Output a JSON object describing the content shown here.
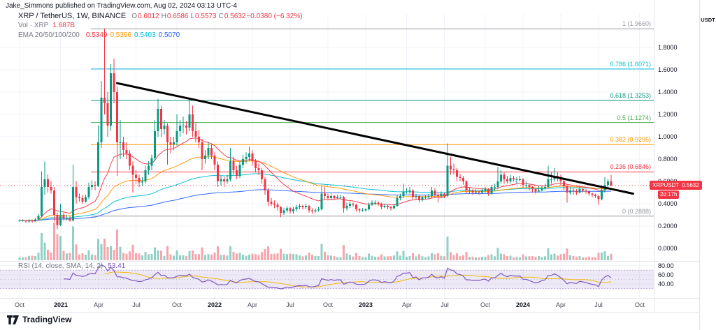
{
  "attribution": "Jake_Simmons published on TradingView.com, Aug 02, 2024 03:13 UTC-4",
  "header_legend": {
    "symbol_title": "XRP / TetherUS, 1W, BINANCE",
    "ohlc": [
      {
        "label": "O",
        "value": "0.6012"
      },
      {
        "label": "H",
        "value": "0.6586"
      },
      {
        "label": "L",
        "value": "0.5573"
      },
      {
        "label": "C",
        "value": "0.5632"
      }
    ],
    "change": "−0.0380 (−6.32%)",
    "value_color": "#f23645",
    "volume_label": "Vol · XRP",
    "volume_value": "1.687B",
    "volume_value_color": "#f23645",
    "ema_label": "EMA 20/50/100/200",
    "ema_values": [
      {
        "value": "0.5349",
        "color": "#f23645"
      },
      {
        "value": "0.5396",
        "color": "#ff9800"
      },
      {
        "value": "0.5403",
        "color": "#00bcd4"
      },
      {
        "value": "0.5070",
        "color": "#2962ff"
      }
    ]
  },
  "rsi_legend": {
    "label": "RSI (14, close, SMA, 14, 2)",
    "value": "53.41",
    "color": "#7e57c2"
  },
  "price_axis": {
    "currency_button": "USDT",
    "ticks": [
      {
        "label": "1.8000",
        "value": 1.8
      },
      {
        "label": "1.6000",
        "value": 1.6
      },
      {
        "label": "1.4000",
        "value": 1.4
      },
      {
        "label": "1.2000",
        "value": 1.2
      },
      {
        "label": "1.0000",
        "value": 1.0
      },
      {
        "label": "0.8000",
        "value": 0.8
      },
      {
        "label": "0.6000",
        "value": 0.6
      },
      {
        "label": "0.4000",
        "value": 0.4
      },
      {
        "label": "0.2000",
        "value": 0.2
      },
      {
        "label": "0.0000",
        "value": 0.0
      }
    ],
    "last_price_badge": {
      "symbol": "XRPUSDT",
      "price": "0.5632",
      "countdown": "2d 17h",
      "bg": "#f23645"
    }
  },
  "rsi_axis_ticks": [
    {
      "label": "80.00",
      "value": 80
    },
    {
      "label": "60.00",
      "value": 60
    },
    {
      "label": "40.00",
      "value": 40
    }
  ],
  "footer": {
    "brand": "TradingView"
  },
  "chart_data": {
    "type": "candlestick",
    "title": "XRP / TetherUS weekly candles with EMA 20/50/100/200, Fibonacci retracement 0.2888–1.9660, descending black trendline, volume and RSI(14) panel",
    "symbol": "XRPUSDT",
    "exchange": "BINANCE",
    "timeframe": "1W",
    "price_range_shown": [
      0.0,
      2.1
    ],
    "grid": true,
    "x_ticks": [
      {
        "label": "Oct",
        "index": 0
      },
      {
        "label": "2021",
        "index": 13
      },
      {
        "label": "Apr",
        "index": 25
      },
      {
        "label": "Jul",
        "index": 37
      },
      {
        "label": "Oct",
        "index": 50
      },
      {
        "label": "2022",
        "index": 62
      },
      {
        "label": "Apr",
        "index": 74
      },
      {
        "label": "Jul",
        "index": 86
      },
      {
        "label": "Oct",
        "index": 98
      },
      {
        "label": "2023",
        "index": 110
      },
      {
        "label": "Apr",
        "index": 123
      },
      {
        "label": "Jul",
        "index": 135
      },
      {
        "label": "Oct",
        "index": 148
      },
      {
        "label": "2024",
        "index": 160
      },
      {
        "label": "Apr",
        "index": 172
      },
      {
        "label": "Jul",
        "index": 184
      },
      {
        "label": "Oct",
        "index": 197
      }
    ],
    "colors": {
      "up": "#089981",
      "down": "#f23645",
      "vol_up": "rgba(8,153,129,0.45)",
      "vol_down": "rgba(242,54,69,0.45)"
    },
    "candles": [
      [
        0.25,
        0.26,
        0.24,
        0.25
      ],
      [
        0.25,
        0.26,
        0.24,
        0.25
      ],
      [
        0.25,
        0.25,
        0.23,
        0.24
      ],
      [
        0.24,
        0.26,
        0.23,
        0.25
      ],
      [
        0.25,
        0.26,
        0.23,
        0.24
      ],
      [
        0.24,
        0.27,
        0.24,
        0.26
      ],
      [
        0.26,
        0.31,
        0.25,
        0.29
      ],
      [
        0.29,
        0.69,
        0.28,
        0.55
      ],
      [
        0.55,
        0.78,
        0.48,
        0.62
      ],
      [
        0.62,
        0.66,
        0.5,
        0.55
      ],
      [
        0.55,
        0.6,
        0.49,
        0.52
      ],
      [
        0.52,
        0.55,
        0.24,
        0.3
      ],
      [
        0.3,
        0.32,
        0.17,
        0.21
      ],
      [
        0.21,
        0.4,
        0.2,
        0.3
      ],
      [
        0.3,
        0.32,
        0.25,
        0.27
      ],
      [
        0.27,
        0.3,
        0.25,
        0.27
      ],
      [
        0.27,
        0.29,
        0.24,
        0.25
      ],
      [
        0.25,
        0.75,
        0.24,
        0.55
      ],
      [
        0.55,
        0.6,
        0.4,
        0.46
      ],
      [
        0.46,
        0.49,
        0.42,
        0.45
      ],
      [
        0.45,
        0.48,
        0.4,
        0.42
      ],
      [
        0.42,
        0.48,
        0.41,
        0.46
      ],
      [
        0.46,
        0.59,
        0.44,
        0.55
      ],
      [
        0.55,
        0.61,
        0.52,
        0.57
      ],
      [
        0.57,
        0.6,
        0.52,
        0.56
      ],
      [
        0.56,
        1.1,
        0.55,
        0.95
      ],
      [
        0.95,
        1.5,
        0.9,
        1.35
      ],
      [
        1.35,
        1.97,
        1.2,
        1.3
      ],
      [
        1.3,
        1.4,
        1.0,
        1.1
      ],
      [
        1.1,
        1.65,
        1.05,
        1.57
      ],
      [
        1.57,
        1.7,
        1.3,
        1.4
      ],
      [
        1.4,
        1.45,
        0.65,
        0.95
      ],
      [
        0.95,
        1.15,
        0.8,
        0.95
      ],
      [
        0.95,
        1.0,
        0.82,
        0.88
      ],
      [
        0.88,
        0.95,
        0.8,
        0.85
      ],
      [
        0.85,
        0.88,
        0.7,
        0.74
      ],
      [
        0.74,
        0.78,
        0.5,
        0.66
      ],
      [
        0.66,
        0.7,
        0.58,
        0.63
      ],
      [
        0.63,
        0.66,
        0.55,
        0.59
      ],
      [
        0.59,
        0.64,
        0.56,
        0.6
      ],
      [
        0.6,
        0.74,
        0.58,
        0.7
      ],
      [
        0.7,
        0.78,
        0.66,
        0.74
      ],
      [
        0.74,
        0.84,
        0.7,
        0.81
      ],
      [
        0.81,
        1.15,
        0.78,
        1.05
      ],
      [
        1.05,
        1.34,
        1.0,
        1.25
      ],
      [
        1.25,
        1.28,
        1.0,
        1.07
      ],
      [
        1.07,
        1.15,
        1.02,
        1.1
      ],
      [
        1.1,
        1.12,
        0.75,
        0.95
      ],
      [
        0.95,
        1.0,
        0.85,
        0.93
      ],
      [
        0.93,
        1.0,
        0.88,
        0.95
      ],
      [
        0.95,
        1.2,
        0.92,
        1.05
      ],
      [
        1.05,
        1.15,
        1.0,
        1.1
      ],
      [
        1.1,
        1.18,
        1.03,
        1.1
      ],
      [
        1.1,
        1.14,
        1.02,
        1.08
      ],
      [
        1.08,
        1.35,
        1.05,
        1.2
      ],
      [
        1.2,
        1.28,
        1.0,
        1.05
      ],
      [
        1.05,
        1.12,
        0.95,
        1.0
      ],
      [
        1.0,
        1.06,
        0.9,
        0.95
      ],
      [
        0.95,
        0.98,
        0.7,
        0.8
      ],
      [
        0.8,
        0.88,
        0.76,
        0.83
      ],
      [
        0.83,
        0.95,
        0.8,
        0.9
      ],
      [
        0.9,
        0.93,
        0.8,
        0.83
      ],
      [
        0.83,
        0.86,
        0.7,
        0.75
      ],
      [
        0.75,
        0.78,
        0.55,
        0.6
      ],
      [
        0.6,
        0.65,
        0.56,
        0.62
      ],
      [
        0.62,
        0.64,
        0.55,
        0.6
      ],
      [
        0.6,
        0.66,
        0.58,
        0.62
      ],
      [
        0.62,
        0.9,
        0.6,
        0.78
      ],
      [
        0.78,
        0.82,
        0.66,
        0.7
      ],
      [
        0.7,
        0.74,
        0.62,
        0.65
      ],
      [
        0.65,
        0.78,
        0.63,
        0.75
      ],
      [
        0.75,
        0.84,
        0.72,
        0.8
      ],
      [
        0.8,
        0.86,
        0.76,
        0.82
      ],
      [
        0.82,
        0.91,
        0.78,
        0.85
      ],
      [
        0.85,
        0.88,
        0.74,
        0.78
      ],
      [
        0.78,
        0.8,
        0.68,
        0.72
      ],
      [
        0.72,
        0.76,
        0.66,
        0.7
      ],
      [
        0.7,
        0.72,
        0.58,
        0.62
      ],
      [
        0.62,
        0.64,
        0.48,
        0.52
      ],
      [
        0.52,
        0.54,
        0.38,
        0.42
      ],
      [
        0.42,
        0.45,
        0.38,
        0.4
      ],
      [
        0.4,
        0.43,
        0.36,
        0.39
      ],
      [
        0.39,
        0.41,
        0.34,
        0.37
      ],
      [
        0.37,
        0.38,
        0.28,
        0.32
      ],
      [
        0.32,
        0.36,
        0.3,
        0.34
      ],
      [
        0.34,
        0.38,
        0.32,
        0.36
      ],
      [
        0.36,
        0.37,
        0.31,
        0.33
      ],
      [
        0.33,
        0.37,
        0.31,
        0.35
      ],
      [
        0.35,
        0.39,
        0.33,
        0.37
      ],
      [
        0.37,
        0.4,
        0.35,
        0.38
      ],
      [
        0.38,
        0.39,
        0.35,
        0.37
      ],
      [
        0.37,
        0.4,
        0.35,
        0.38
      ],
      [
        0.38,
        0.39,
        0.32,
        0.34
      ],
      [
        0.34,
        0.36,
        0.31,
        0.33
      ],
      [
        0.33,
        0.36,
        0.32,
        0.34
      ],
      [
        0.34,
        0.37,
        0.33,
        0.35
      ],
      [
        0.35,
        0.56,
        0.34,
        0.49
      ],
      [
        0.49,
        0.55,
        0.44,
        0.47
      ],
      [
        0.47,
        0.49,
        0.43,
        0.45
      ],
      [
        0.45,
        0.49,
        0.43,
        0.47
      ],
      [
        0.47,
        0.48,
        0.43,
        0.45
      ],
      [
        0.45,
        0.48,
        0.44,
        0.46
      ],
      [
        0.46,
        0.48,
        0.44,
        0.46
      ],
      [
        0.46,
        0.47,
        0.32,
        0.36
      ],
      [
        0.36,
        0.41,
        0.34,
        0.38
      ],
      [
        0.38,
        0.42,
        0.36,
        0.4
      ],
      [
        0.4,
        0.41,
        0.37,
        0.39
      ],
      [
        0.39,
        0.4,
        0.33,
        0.35
      ],
      [
        0.35,
        0.36,
        0.32,
        0.34
      ],
      [
        0.34,
        0.36,
        0.33,
        0.34
      ],
      [
        0.34,
        0.36,
        0.33,
        0.35
      ],
      [
        0.35,
        0.41,
        0.34,
        0.39
      ],
      [
        0.39,
        0.43,
        0.38,
        0.41
      ],
      [
        0.41,
        0.43,
        0.39,
        0.41
      ],
      [
        0.41,
        0.42,
        0.38,
        0.4
      ],
      [
        0.4,
        0.41,
        0.35,
        0.37
      ],
      [
        0.37,
        0.4,
        0.36,
        0.38
      ],
      [
        0.38,
        0.39,
        0.35,
        0.37
      ],
      [
        0.37,
        0.38,
        0.34,
        0.36
      ],
      [
        0.36,
        0.4,
        0.35,
        0.38
      ],
      [
        0.38,
        0.48,
        0.37,
        0.45
      ],
      [
        0.45,
        0.49,
        0.43,
        0.47
      ],
      [
        0.47,
        0.58,
        0.45,
        0.51
      ],
      [
        0.51,
        0.54,
        0.49,
        0.51
      ],
      [
        0.51,
        0.55,
        0.49,
        0.52
      ],
      [
        0.52,
        0.53,
        0.44,
        0.46
      ],
      [
        0.46,
        0.49,
        0.44,
        0.47
      ],
      [
        0.47,
        0.48,
        0.41,
        0.43
      ],
      [
        0.43,
        0.47,
        0.42,
        0.46
      ],
      [
        0.46,
        0.48,
        0.44,
        0.46
      ],
      [
        0.46,
        0.49,
        0.44,
        0.47
      ],
      [
        0.47,
        0.55,
        0.45,
        0.52
      ],
      [
        0.52,
        0.54,
        0.46,
        0.48
      ],
      [
        0.48,
        0.5,
        0.41,
        0.47
      ],
      [
        0.47,
        0.51,
        0.45,
        0.49
      ],
      [
        0.49,
        0.5,
        0.45,
        0.47
      ],
      [
        0.47,
        0.94,
        0.46,
        0.74
      ],
      [
        0.74,
        0.82,
        0.66,
        0.71
      ],
      [
        0.71,
        0.76,
        0.66,
        0.7
      ],
      [
        0.7,
        0.72,
        0.6,
        0.64
      ],
      [
        0.64,
        0.67,
        0.6,
        0.63
      ],
      [
        0.63,
        0.65,
        0.57,
        0.6
      ],
      [
        0.6,
        0.61,
        0.49,
        0.52
      ],
      [
        0.52,
        0.54,
        0.49,
        0.52
      ],
      [
        0.52,
        0.53,
        0.48,
        0.5
      ],
      [
        0.5,
        0.53,
        0.49,
        0.51
      ],
      [
        0.51,
        0.52,
        0.48,
        0.5
      ],
      [
        0.5,
        0.54,
        0.49,
        0.52
      ],
      [
        0.52,
        0.55,
        0.5,
        0.53
      ],
      [
        0.53,
        0.54,
        0.47,
        0.49
      ],
      [
        0.49,
        0.57,
        0.48,
        0.55
      ],
      [
        0.55,
        0.58,
        0.52,
        0.55
      ],
      [
        0.55,
        0.73,
        0.53,
        0.6
      ],
      [
        0.6,
        0.7,
        0.58,
        0.66
      ],
      [
        0.66,
        0.68,
        0.58,
        0.62
      ],
      [
        0.62,
        0.65,
        0.58,
        0.6
      ],
      [
        0.6,
        0.66,
        0.58,
        0.63
      ],
      [
        0.63,
        0.65,
        0.6,
        0.62
      ],
      [
        0.62,
        0.64,
        0.58,
        0.62
      ],
      [
        0.62,
        0.65,
        0.6,
        0.62
      ],
      [
        0.62,
        0.63,
        0.54,
        0.57
      ],
      [
        0.57,
        0.6,
        0.54,
        0.57
      ],
      [
        0.57,
        0.58,
        0.52,
        0.55
      ],
      [
        0.55,
        0.56,
        0.5,
        0.53
      ],
      [
        0.53,
        0.54,
        0.49,
        0.51
      ],
      [
        0.51,
        0.56,
        0.5,
        0.52
      ],
      [
        0.52,
        0.56,
        0.51,
        0.54
      ],
      [
        0.54,
        0.58,
        0.52,
        0.55
      ],
      [
        0.55,
        0.74,
        0.54,
        0.62
      ],
      [
        0.62,
        0.68,
        0.58,
        0.62
      ],
      [
        0.62,
        0.72,
        0.6,
        0.65
      ],
      [
        0.65,
        0.68,
        0.6,
        0.63
      ],
      [
        0.63,
        0.66,
        0.56,
        0.6
      ],
      [
        0.6,
        0.62,
        0.52,
        0.56
      ],
      [
        0.56,
        0.57,
        0.41,
        0.5
      ],
      [
        0.5,
        0.55,
        0.48,
        0.52
      ],
      [
        0.52,
        0.54,
        0.48,
        0.51
      ],
      [
        0.51,
        0.53,
        0.48,
        0.5
      ],
      [
        0.5,
        0.55,
        0.49,
        0.53
      ],
      [
        0.53,
        0.54,
        0.5,
        0.52
      ],
      [
        0.52,
        0.53,
        0.49,
        0.51
      ],
      [
        0.51,
        0.52,
        0.47,
        0.49
      ],
      [
        0.49,
        0.5,
        0.46,
        0.48
      ],
      [
        0.48,
        0.49,
        0.45,
        0.47
      ],
      [
        0.47,
        0.48,
        0.39,
        0.44
      ],
      [
        0.44,
        0.54,
        0.43,
        0.52
      ],
      [
        0.52,
        0.64,
        0.5,
        0.57
      ],
      [
        0.57,
        0.62,
        0.55,
        0.6
      ],
      [
        0.6012,
        0.6586,
        0.5573,
        0.5632
      ]
    ],
    "emas": [
      {
        "period": 20,
        "color": "#f23645"
      },
      {
        "period": 50,
        "color": "#ff9800"
      },
      {
        "period": 100,
        "color": "#00bcd4"
      },
      {
        "period": 200,
        "color": "#2962ff"
      }
    ],
    "fib_levels": [
      {
        "label": "1 (1.9660)",
        "price": 1.966,
        "color": "#9598a1"
      },
      {
        "label": "0.786 (1.6071)",
        "price": 1.6071,
        "color": "#00bcd4"
      },
      {
        "label": "0.618 (1.3253)",
        "price": 1.3253,
        "color": "#089981"
      },
      {
        "label": "0.5 (1.1274)",
        "price": 1.1274,
        "color": "#4caf50"
      },
      {
        "label": "0.382 (0.9295)",
        "price": 0.9295,
        "color": "#ff9800"
      },
      {
        "label": "0.236 (0.6846)",
        "price": 0.6846,
        "color": "#f23645"
      },
      {
        "label": "0 (0.2888)",
        "price": 0.2888,
        "color": "#9598a1"
      }
    ],
    "trendline": {
      "from": {
        "index": 31,
        "price": 1.48
      },
      "to": {
        "index": 195,
        "price": 0.49
      },
      "color": "#000000",
      "width": 3
    },
    "last_price": 0.5632,
    "rsi": {
      "band": [
        30,
        70
      ],
      "line_color": "#7e57c2",
      "sma_color": "#f0b90b",
      "fill": "rgba(126,87,194,0.13)"
    }
  }
}
